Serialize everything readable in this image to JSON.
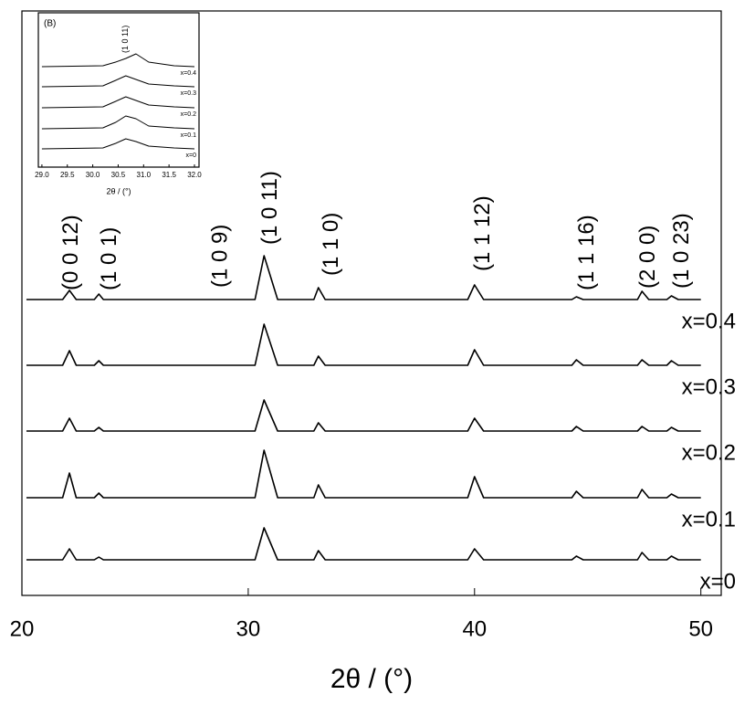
{
  "chart_data": [
    {
      "type": "line",
      "x_label": "2θ / (°)",
      "xlim": [
        20,
        50.9
      ],
      "xticks": [
        20,
        30,
        40,
        50
      ],
      "ylim": [
        0,
        64
      ],
      "x": [
        20.2,
        21.8,
        22.1,
        22.4,
        23.2,
        23.4,
        23.6,
        30.3,
        30.7,
        31.3,
        32.9,
        33.1,
        33.4,
        39.7,
        40.0,
        40.4,
        44.3,
        44.5,
        44.8,
        47.2,
        47.4,
        47.7,
        48.5,
        48.7,
        49.0,
        50.0
      ],
      "series": [
        {
          "name": "x=0",
          "color": "#000000",
          "values": [
            3.9,
            3.9,
            5.1,
            3.9,
            3.9,
            4.2,
            3.9,
            3.9,
            7.4,
            3.9,
            3.9,
            4.9,
            3.9,
            3.9,
            5.1,
            3.9,
            3.9,
            4.3,
            3.9,
            3.9,
            4.7,
            3.9,
            3.9,
            4.3,
            3.9,
            3.9
          ]
        },
        {
          "name": "x=0.1",
          "color": "#000000",
          "values": [
            10.7,
            10.7,
            13.4,
            10.7,
            10.7,
            11.2,
            10.7,
            10.7,
            15.9,
            10.7,
            10.7,
            12.1,
            10.7,
            10.7,
            13.0,
            10.7,
            10.7,
            11.4,
            10.7,
            10.7,
            11.6,
            10.7,
            10.7,
            11.1,
            10.7,
            10.7
          ]
        },
        {
          "name": "x=0.2",
          "color": "#000000",
          "values": [
            18.0,
            18.0,
            19.4,
            18.0,
            18.0,
            18.4,
            18.0,
            18.0,
            21.4,
            18.0,
            18.0,
            18.9,
            18.0,
            18.0,
            19.4,
            18.0,
            18.0,
            18.5,
            18.0,
            18.0,
            18.5,
            18.0,
            18.0,
            18.4,
            18.0,
            18.0
          ]
        },
        {
          "name": "x=0.3",
          "color": "#000000",
          "values": [
            25.2,
            25.2,
            26.8,
            25.2,
            25.2,
            25.7,
            25.2,
            25.2,
            29.7,
            25.2,
            25.2,
            26.2,
            25.2,
            25.2,
            26.9,
            25.2,
            25.2,
            25.8,
            25.2,
            25.2,
            25.8,
            25.2,
            25.2,
            25.7,
            25.2,
            25.2
          ]
        },
        {
          "name": "x=0.4",
          "color": "#000000",
          "values": [
            32.4,
            32.4,
            33.4,
            32.4,
            32.4,
            33.0,
            32.4,
            32.4,
            37.2,
            32.4,
            32.4,
            33.7,
            32.4,
            32.4,
            34.0,
            32.4,
            32.4,
            32.7,
            32.4,
            32.4,
            33.3,
            32.4,
            32.4,
            32.8,
            32.4,
            32.4
          ]
        }
      ],
      "annotations": [
        {
          "text": "(0 0 12)",
          "x": 22.2,
          "y": 33.4
        },
        {
          "text": "(1 0 1)",
          "x": 23.9,
          "y": 33.4
        },
        {
          "text": "(1 0 9)",
          "x": 28.8,
          "y": 33.7
        },
        {
          "text": "(1 0 11)",
          "x": 31.0,
          "y": 38.4
        },
        {
          "text": "(1 1 0)",
          "x": 33.7,
          "y": 35.0
        },
        {
          "text": "(1 1 12)",
          "x": 40.4,
          "y": 35.5
        },
        {
          "text": "(1 1 16)",
          "x": 45.0,
          "y": 33.4
        },
        {
          "text": "(2 0 0)",
          "x": 47.7,
          "y": 33.6
        },
        {
          "text": "(1 0 23)",
          "x": 49.2,
          "y": 33.6
        }
      ]
    },
    {
      "type": "line",
      "title": "(B)",
      "x_label": "2θ / (°)",
      "xlim": [
        28.93,
        32.09
      ],
      "xticks": [
        {
          "value": 29,
          "label": "29.0"
        },
        29.5,
        {
          "value": 30,
          "label": "30.0"
        },
        30.5,
        {
          "value": 31,
          "label": "31.0"
        },
        31.5,
        {
          "value": 32,
          "label": "32.0"
        }
      ],
      "ylim": [
        0,
        16.9
      ],
      "x": [
        29.0,
        30.2,
        30.45,
        30.65,
        30.85,
        31.1,
        31.6,
        32.0
      ],
      "series": [
        {
          "name": "x=0",
          "color": "#000000",
          "values": [
            2.0,
            2.1,
            2.6,
            3.1,
            2.8,
            2.3,
            2.1,
            2.0
          ]
        },
        {
          "name": "x=0.1",
          "color": "#000000",
          "values": [
            4.2,
            4.3,
            4.9,
            5.6,
            5.3,
            4.5,
            4.3,
            4.2
          ]
        },
        {
          "name": "x=0.2",
          "color": "#000000",
          "values": [
            6.5,
            6.6,
            7.2,
            7.7,
            7.3,
            6.8,
            6.6,
            6.5
          ]
        },
        {
          "name": "x=0.3",
          "color": "#000000",
          "values": [
            8.8,
            8.9,
            9.5,
            10.0,
            9.6,
            9.1,
            8.9,
            8.8
          ]
        },
        {
          "name": "x=0.4",
          "color": "#000000",
          "values": [
            11.0,
            11.1,
            11.5,
            11.9,
            12.4,
            11.5,
            11.1,
            11.0
          ]
        }
      ],
      "annotations": [
        {
          "text": "(1 0 11)",
          "x": 30.65,
          "y": 12.5
        }
      ]
    }
  ]
}
